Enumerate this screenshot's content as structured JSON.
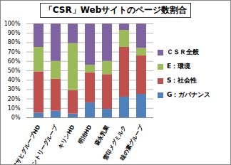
{
  "chart_data": {
    "type": "bar",
    "stacked": true,
    "grid": true,
    "title": "「CSR」Webサイトのページ数割合",
    "categories": [
      "アサヒグループHD",
      "サントリーグループ",
      "キリンHD",
      "明治HD",
      "森永乳業",
      "雪印メグミルク",
      "味の素グループ"
    ],
    "series": [
      {
        "name": "G：ガバナンス",
        "color": "#4f81bd",
        "values": [
          5,
          7,
          4,
          16,
          9,
          22,
          25
        ]
      },
      {
        "name": "S：社会性",
        "color": "#c0504d",
        "values": [
          44,
          34,
          25,
          32,
          37,
          53,
          41
        ]
      },
      {
        "name": "E：環境",
        "color": "#9bbb59",
        "values": [
          26,
          19,
          50,
          8,
          14,
          18,
          8
        ]
      },
      {
        "name": "ＣＳＲ全般",
        "color": "#8064a2",
        "values": [
          25,
          40,
          21,
          44,
          40,
          7,
          26
        ]
      }
    ],
    "ylim": [
      0,
      100
    ],
    "yticks": [
      {
        "value": 0,
        "label": "0%"
      },
      {
        "value": 10,
        "label": "10%"
      },
      {
        "value": 20,
        "label": "20%"
      },
      {
        "value": 30,
        "label": "30%"
      },
      {
        "value": 40,
        "label": "40%"
      },
      {
        "value": 50,
        "label": "50%"
      },
      {
        "value": 60,
        "label": "60%"
      },
      {
        "value": 70,
        "label": "70%"
      },
      {
        "value": 80,
        "label": "80%"
      },
      {
        "value": 90,
        "label": "90%"
      },
      {
        "value": 100,
        "label": "100%"
      }
    ],
    "legend": "right"
  }
}
